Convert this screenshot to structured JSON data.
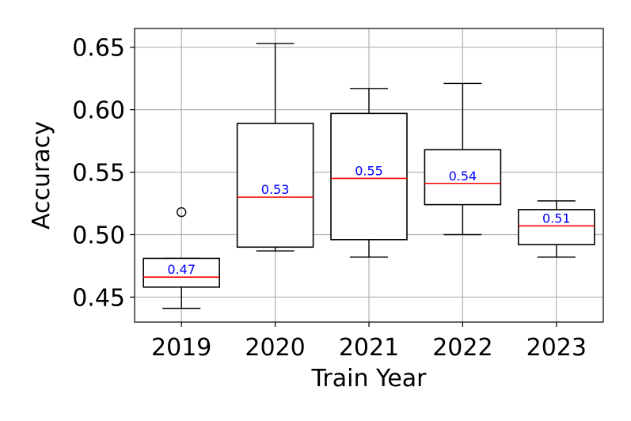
{
  "chart_data": {
    "type": "box",
    "title": "",
    "xlabel": "Train Year",
    "ylabel": "Accuracy",
    "ylim": [
      0.43,
      0.665
    ],
    "yticks": [
      0.45,
      0.5,
      0.55,
      0.6,
      0.65
    ],
    "ytick_labels": [
      "0.45",
      "0.50",
      "0.55",
      "0.60",
      "0.65"
    ],
    "grid": true,
    "categories": [
      "2019",
      "2020",
      "2021",
      "2022",
      "2023"
    ],
    "boxes": [
      {
        "category": "2019",
        "whisker_low": 0.441,
        "q1": 0.458,
        "median": 0.466,
        "q3": 0.481,
        "whisker_high": 0.481,
        "outliers": [
          0.518
        ],
        "median_label": "0.47"
      },
      {
        "category": "2020",
        "whisker_low": 0.487,
        "q1": 0.49,
        "median": 0.53,
        "q3": 0.589,
        "whisker_high": 0.653,
        "outliers": [],
        "median_label": "0.53"
      },
      {
        "category": "2021",
        "whisker_low": 0.482,
        "q1": 0.496,
        "median": 0.545,
        "q3": 0.597,
        "whisker_high": 0.617,
        "outliers": [],
        "median_label": "0.55"
      },
      {
        "category": "2022",
        "whisker_low": 0.5,
        "q1": 0.524,
        "median": 0.541,
        "q3": 0.568,
        "whisker_high": 0.621,
        "outliers": [],
        "median_label": "0.54"
      },
      {
        "category": "2023",
        "whisker_low": 0.482,
        "q1": 0.492,
        "median": 0.507,
        "q3": 0.52,
        "whisker_high": 0.527,
        "outliers": [],
        "median_label": "0.51"
      }
    ],
    "colors": {
      "box": "#000000",
      "median_line": "#ff0000",
      "median_text": "#0000ff",
      "grid": "#b0b0b0",
      "outlier": "#000000"
    }
  }
}
